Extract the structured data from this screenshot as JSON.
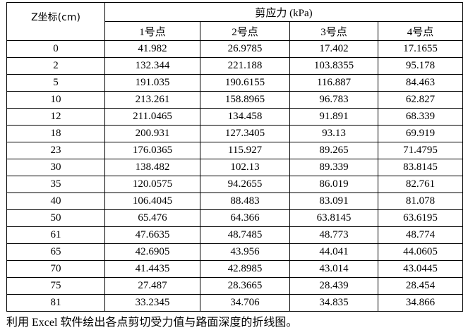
{
  "table": {
    "z_header": "Z坐标(cm)",
    "group_header": "剪应力 (kPa)",
    "columns": [
      "1号点",
      "2号点",
      "3号点",
      "4号点"
    ],
    "rows": [
      [
        "0",
        "41.982",
        "26.9785",
        "17.402",
        "17.1655"
      ],
      [
        "2",
        "132.344",
        "221.188",
        "103.8355",
        "95.178"
      ],
      [
        "5",
        "191.035",
        "190.6155",
        "116.887",
        "84.463"
      ],
      [
        "10",
        "213.261",
        "158.8965",
        "96.783",
        "62.827"
      ],
      [
        "12",
        "211.0465",
        "134.458",
        "91.891",
        "68.339"
      ],
      [
        "18",
        "200.931",
        "127.3405",
        "93.13",
        "69.919"
      ],
      [
        "23",
        "176.0365",
        "115.927",
        "89.265",
        "71.4795"
      ],
      [
        "30",
        "138.482",
        "102.13",
        "89.339",
        "83.8145"
      ],
      [
        "35",
        "120.0575",
        "94.2655",
        "86.019",
        "82.761"
      ],
      [
        "40",
        "106.4045",
        "88.483",
        "83.091",
        "81.078"
      ],
      [
        "50",
        "65.476",
        "64.366",
        "63.8145",
        "63.6195"
      ],
      [
        "61",
        "47.6635",
        "48.7485",
        "48.773",
        "48.774"
      ],
      [
        "65",
        "42.6905",
        "43.956",
        "44.041",
        "44.0605"
      ],
      [
        "70",
        "41.4435",
        "42.8985",
        "43.014",
        "43.0445"
      ],
      [
        "75",
        "27.487",
        "28.3665",
        "28.439",
        "28.454"
      ],
      [
        "81",
        "33.2345",
        "34.706",
        "34.835",
        "34.866"
      ]
    ]
  },
  "caption": "利用 Excel 软件绘出各点剪切受力值与路面深度的折线图。"
}
